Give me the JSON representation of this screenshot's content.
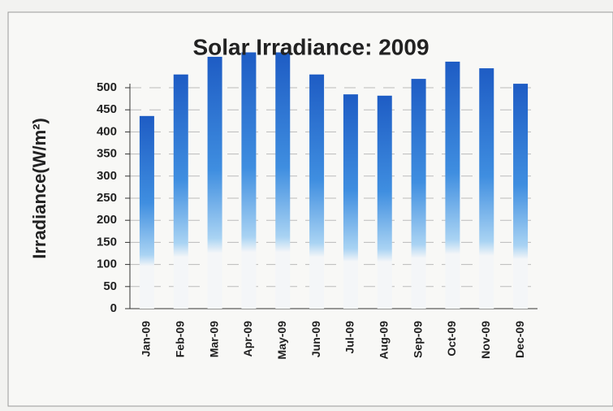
{
  "chart_data": {
    "type": "bar",
    "title": "Solar Irradiance: 2009",
    "y_label": "Irradiance(W/m²)",
    "categories": [
      "Jan-09",
      "Feb-09",
      "Mar-09",
      "Apr-09",
      "May-09",
      "Jun-09",
      "Jul-09",
      "Aug-09",
      "Sep-09",
      "Oct-09",
      "Nov-09",
      "Dec-09"
    ],
    "values": [
      436,
      530,
      570,
      580,
      580,
      530,
      485,
      482,
      520,
      559,
      544,
      509
    ],
    "color": "#2264c8",
    "ylim": [
      0,
      600
    ],
    "yticks": [
      0,
      50,
      100,
      150,
      200,
      250,
      300,
      350,
      400,
      450,
      500,
      550
    ],
    "grid": true
  }
}
